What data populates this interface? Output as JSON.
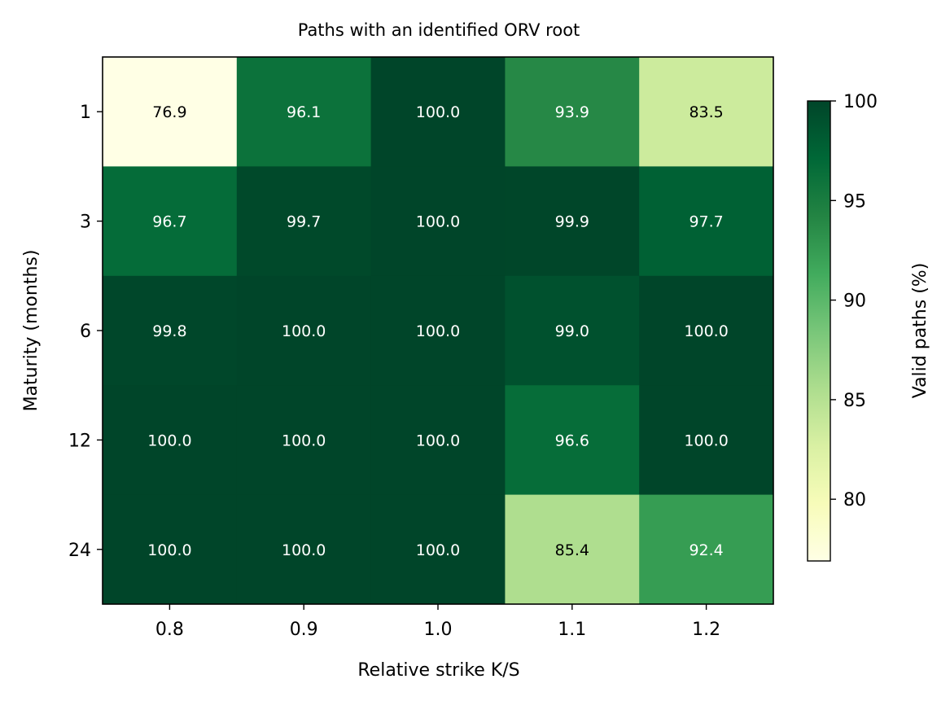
{
  "chart_data": {
    "type": "heatmap",
    "title": "Paths with an identified ORV root",
    "xlabel": "Relative strike K/S",
    "ylabel": "Maturity (months)",
    "x_categories": [
      "0.8",
      "0.9",
      "1.0",
      "1.1",
      "1.2"
    ],
    "y_categories": [
      "1",
      "3",
      "6",
      "12",
      "24"
    ],
    "values": [
      [
        76.9,
        96.1,
        100.0,
        93.9,
        83.5
      ],
      [
        96.7,
        99.7,
        100.0,
        99.9,
        97.7
      ],
      [
        99.8,
        100.0,
        100.0,
        99.0,
        100.0
      ],
      [
        100.0,
        100.0,
        100.0,
        96.6,
        100.0
      ],
      [
        100.0,
        100.0,
        100.0,
        85.4,
        92.4
      ]
    ],
    "colorbar": {
      "label": "Valid paths (%)",
      "range": [
        76.9,
        100.0
      ],
      "ticks": [
        "80",
        "85",
        "90",
        "95",
        "100"
      ],
      "colormap": "YlGn"
    }
  }
}
